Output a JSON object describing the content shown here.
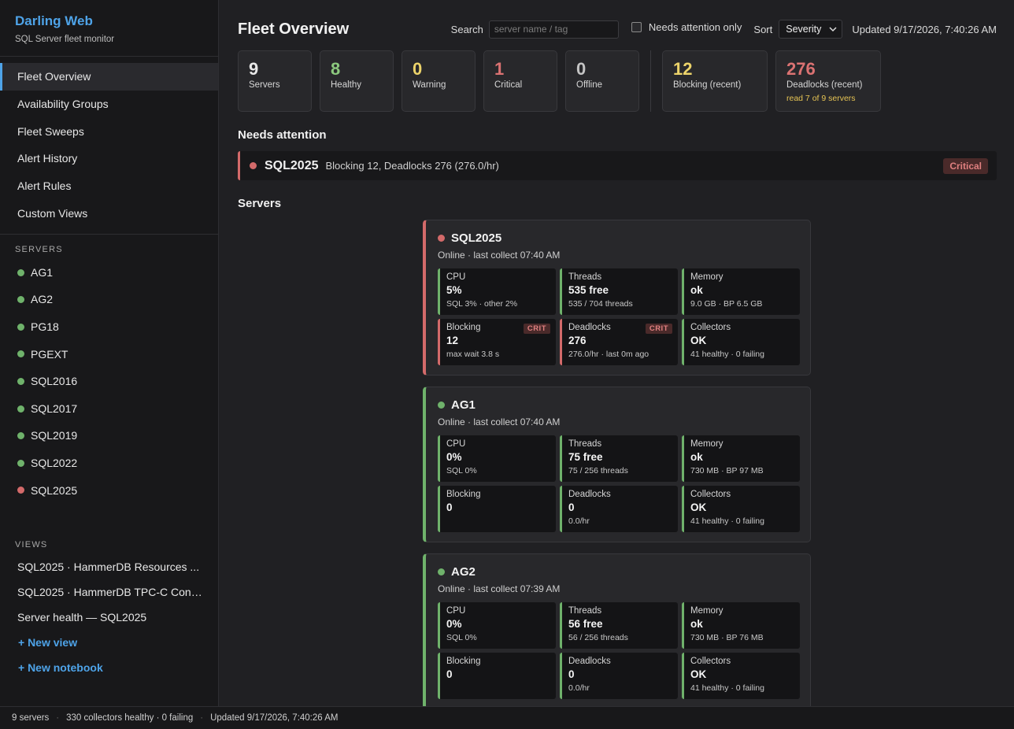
{
  "brand": {
    "title": "Darling Web",
    "subtitle": "SQL Server fleet monitor"
  },
  "nav": [
    {
      "label": "Fleet Overview",
      "active": true
    },
    {
      "label": "Availability Groups"
    },
    {
      "label": "Fleet Sweeps"
    },
    {
      "label": "Alert History"
    },
    {
      "label": "Alert Rules"
    },
    {
      "label": "Custom Views"
    }
  ],
  "servers_section": {
    "label": "SERVERS",
    "items": [
      {
        "name": "AG1",
        "status": "green"
      },
      {
        "name": "AG2",
        "status": "green"
      },
      {
        "name": "PG18",
        "status": "green"
      },
      {
        "name": "PGEXT",
        "status": "green"
      },
      {
        "name": "SQL2016",
        "status": "green"
      },
      {
        "name": "SQL2017",
        "status": "green"
      },
      {
        "name": "SQL2019",
        "status": "green"
      },
      {
        "name": "SQL2022",
        "status": "green"
      },
      {
        "name": "SQL2025",
        "status": "red"
      }
    ]
  },
  "views_section": {
    "label": "VIEWS",
    "items": [
      "SQL2025 · HammerDB Resources ...",
      "SQL2025 · HammerDB TPC-C Cont...",
      "Server health — SQL2025"
    ],
    "new_view": "+ New view",
    "new_notebook": "+ New notebook"
  },
  "header": {
    "title": "Fleet Overview",
    "search_label": "Search",
    "search_placeholder": "server name / tag",
    "search_value": "",
    "attention_only_label": "Needs attention only",
    "attention_only_checked": false,
    "sort_label": "Sort",
    "sort_value": "Severity",
    "updated": "Updated 9/17/2026, 7:40:26 AM"
  },
  "stats": [
    {
      "value": "9",
      "label": "Servers",
      "color": "#e8e8e8"
    },
    {
      "value": "8",
      "label": "Healthy",
      "color": "#8cc97e"
    },
    {
      "value": "0",
      "label": "Warning",
      "color": "#ecd36a"
    },
    {
      "value": "1",
      "label": "Critical",
      "color": "#db7272"
    },
    {
      "value": "0",
      "label": "Offline",
      "color": "#c4c4c4"
    }
  ],
  "stats_recent": [
    {
      "value": "12",
      "label": "Blocking (recent)",
      "color": "#ecd36a",
      "note": ""
    },
    {
      "value": "276",
      "label": "Deadlocks (recent)",
      "color": "#db7272",
      "note": "read 7 of 9 servers"
    }
  ],
  "attention": {
    "title": "Needs attention",
    "items": [
      {
        "name": "SQL2025",
        "desc": "Blocking 12, Deadlocks 276 (276.0/hr)",
        "badge": "Critical"
      }
    ]
  },
  "servers_title": "Servers",
  "cards": [
    {
      "name": "SQL2025",
      "status": "red",
      "sub": "Online · last collect 07:40 AM",
      "metrics": [
        {
          "label": "CPU",
          "value": "5%",
          "sub": "SQL 3% · other 2%",
          "crit": false
        },
        {
          "label": "Threads",
          "value": "535 free",
          "sub": "535 / 704 threads",
          "crit": false
        },
        {
          "label": "Memory",
          "value": "ok",
          "sub": "9.0 GB · BP 6.5 GB",
          "crit": false
        },
        {
          "label": "Blocking",
          "value": "12",
          "sub": "max wait 3.8 s",
          "crit": true,
          "badge": "CRIT"
        },
        {
          "label": "Deadlocks",
          "value": "276",
          "sub": "276.0/hr · last 0m ago",
          "crit": true,
          "badge": "CRIT"
        },
        {
          "label": "Collectors",
          "value": "OK",
          "sub": "41 healthy · 0 failing",
          "crit": false
        }
      ]
    },
    {
      "name": "AG1",
      "status": "green",
      "sub": "Online · last collect 07:40 AM",
      "metrics": [
        {
          "label": "CPU",
          "value": "0%",
          "sub": "SQL 0%",
          "crit": false
        },
        {
          "label": "Threads",
          "value": "75 free",
          "sub": "75 / 256 threads",
          "crit": false
        },
        {
          "label": "Memory",
          "value": "ok",
          "sub": "730 MB · BP 97 MB",
          "crit": false
        },
        {
          "label": "Blocking",
          "value": "0",
          "sub": "",
          "crit": false
        },
        {
          "label": "Deadlocks",
          "value": "0",
          "sub": "0.0/hr",
          "crit": false
        },
        {
          "label": "Collectors",
          "value": "OK",
          "sub": "41 healthy · 0 failing",
          "crit": false
        }
      ]
    },
    {
      "name": "AG2",
      "status": "green",
      "sub": "Online · last collect 07:39 AM",
      "metrics": [
        {
          "label": "CPU",
          "value": "0%",
          "sub": "SQL 0%",
          "crit": false
        },
        {
          "label": "Threads",
          "value": "56 free",
          "sub": "56 / 256 threads",
          "crit": false
        },
        {
          "label": "Memory",
          "value": "ok",
          "sub": "730 MB · BP 76 MB",
          "crit": false
        },
        {
          "label": "Blocking",
          "value": "0",
          "sub": "",
          "crit": false
        },
        {
          "label": "Deadlocks",
          "value": "0",
          "sub": "0.0/hr",
          "crit": false
        },
        {
          "label": "Collectors",
          "value": "OK",
          "sub": "41 healthy · 0 failing",
          "crit": false
        }
      ]
    }
  ],
  "statusbar": {
    "servers": "9 servers",
    "collectors": "330 collectors healthy · 0 failing",
    "updated": "Updated 9/17/2026, 7:40:26 AM"
  }
}
